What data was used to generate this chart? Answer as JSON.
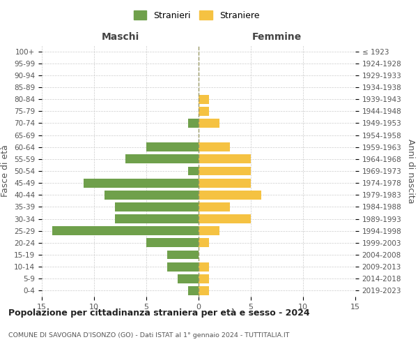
{
  "age_groups": [
    "0-4",
    "5-9",
    "10-14",
    "15-19",
    "20-24",
    "25-29",
    "30-34",
    "35-39",
    "40-44",
    "45-49",
    "50-54",
    "55-59",
    "60-64",
    "65-69",
    "70-74",
    "75-79",
    "80-84",
    "85-89",
    "90-94",
    "95-99",
    "100+"
  ],
  "birth_years": [
    "2019-2023",
    "2014-2018",
    "2009-2013",
    "2004-2008",
    "1999-2003",
    "1994-1998",
    "1989-1993",
    "1984-1988",
    "1979-1983",
    "1974-1978",
    "1969-1973",
    "1964-1968",
    "1959-1963",
    "1954-1958",
    "1949-1953",
    "1944-1948",
    "1939-1943",
    "1934-1938",
    "1929-1933",
    "1924-1928",
    "≤ 1923"
  ],
  "males": [
    1,
    2,
    3,
    3,
    5,
    14,
    8,
    8,
    9,
    11,
    1,
    7,
    5,
    0,
    1,
    0,
    0,
    0,
    0,
    0,
    0
  ],
  "females": [
    1,
    1,
    1,
    0,
    1,
    2,
    5,
    3,
    6,
    5,
    5,
    5,
    3,
    0,
    2,
    1,
    1,
    0,
    0,
    0,
    0
  ],
  "male_color": "#6fa04b",
  "female_color": "#f5c242",
  "male_label": "Stranieri",
  "female_label": "Straniere",
  "title": "Popolazione per cittadinanza straniera per età e sesso - 2024",
  "subtitle": "COMUNE DI SAVOGNA D'ISONZO (GO) - Dati ISTAT al 1° gennaio 2024 - TUTTITALIA.IT",
  "xlabel_left": "Maschi",
  "xlabel_right": "Femmine",
  "ylabel_left": "Fasce di età",
  "ylabel_right": "Anni di nascita",
  "xlim": 15,
  "background_color": "#ffffff",
  "grid_color": "#cccccc"
}
